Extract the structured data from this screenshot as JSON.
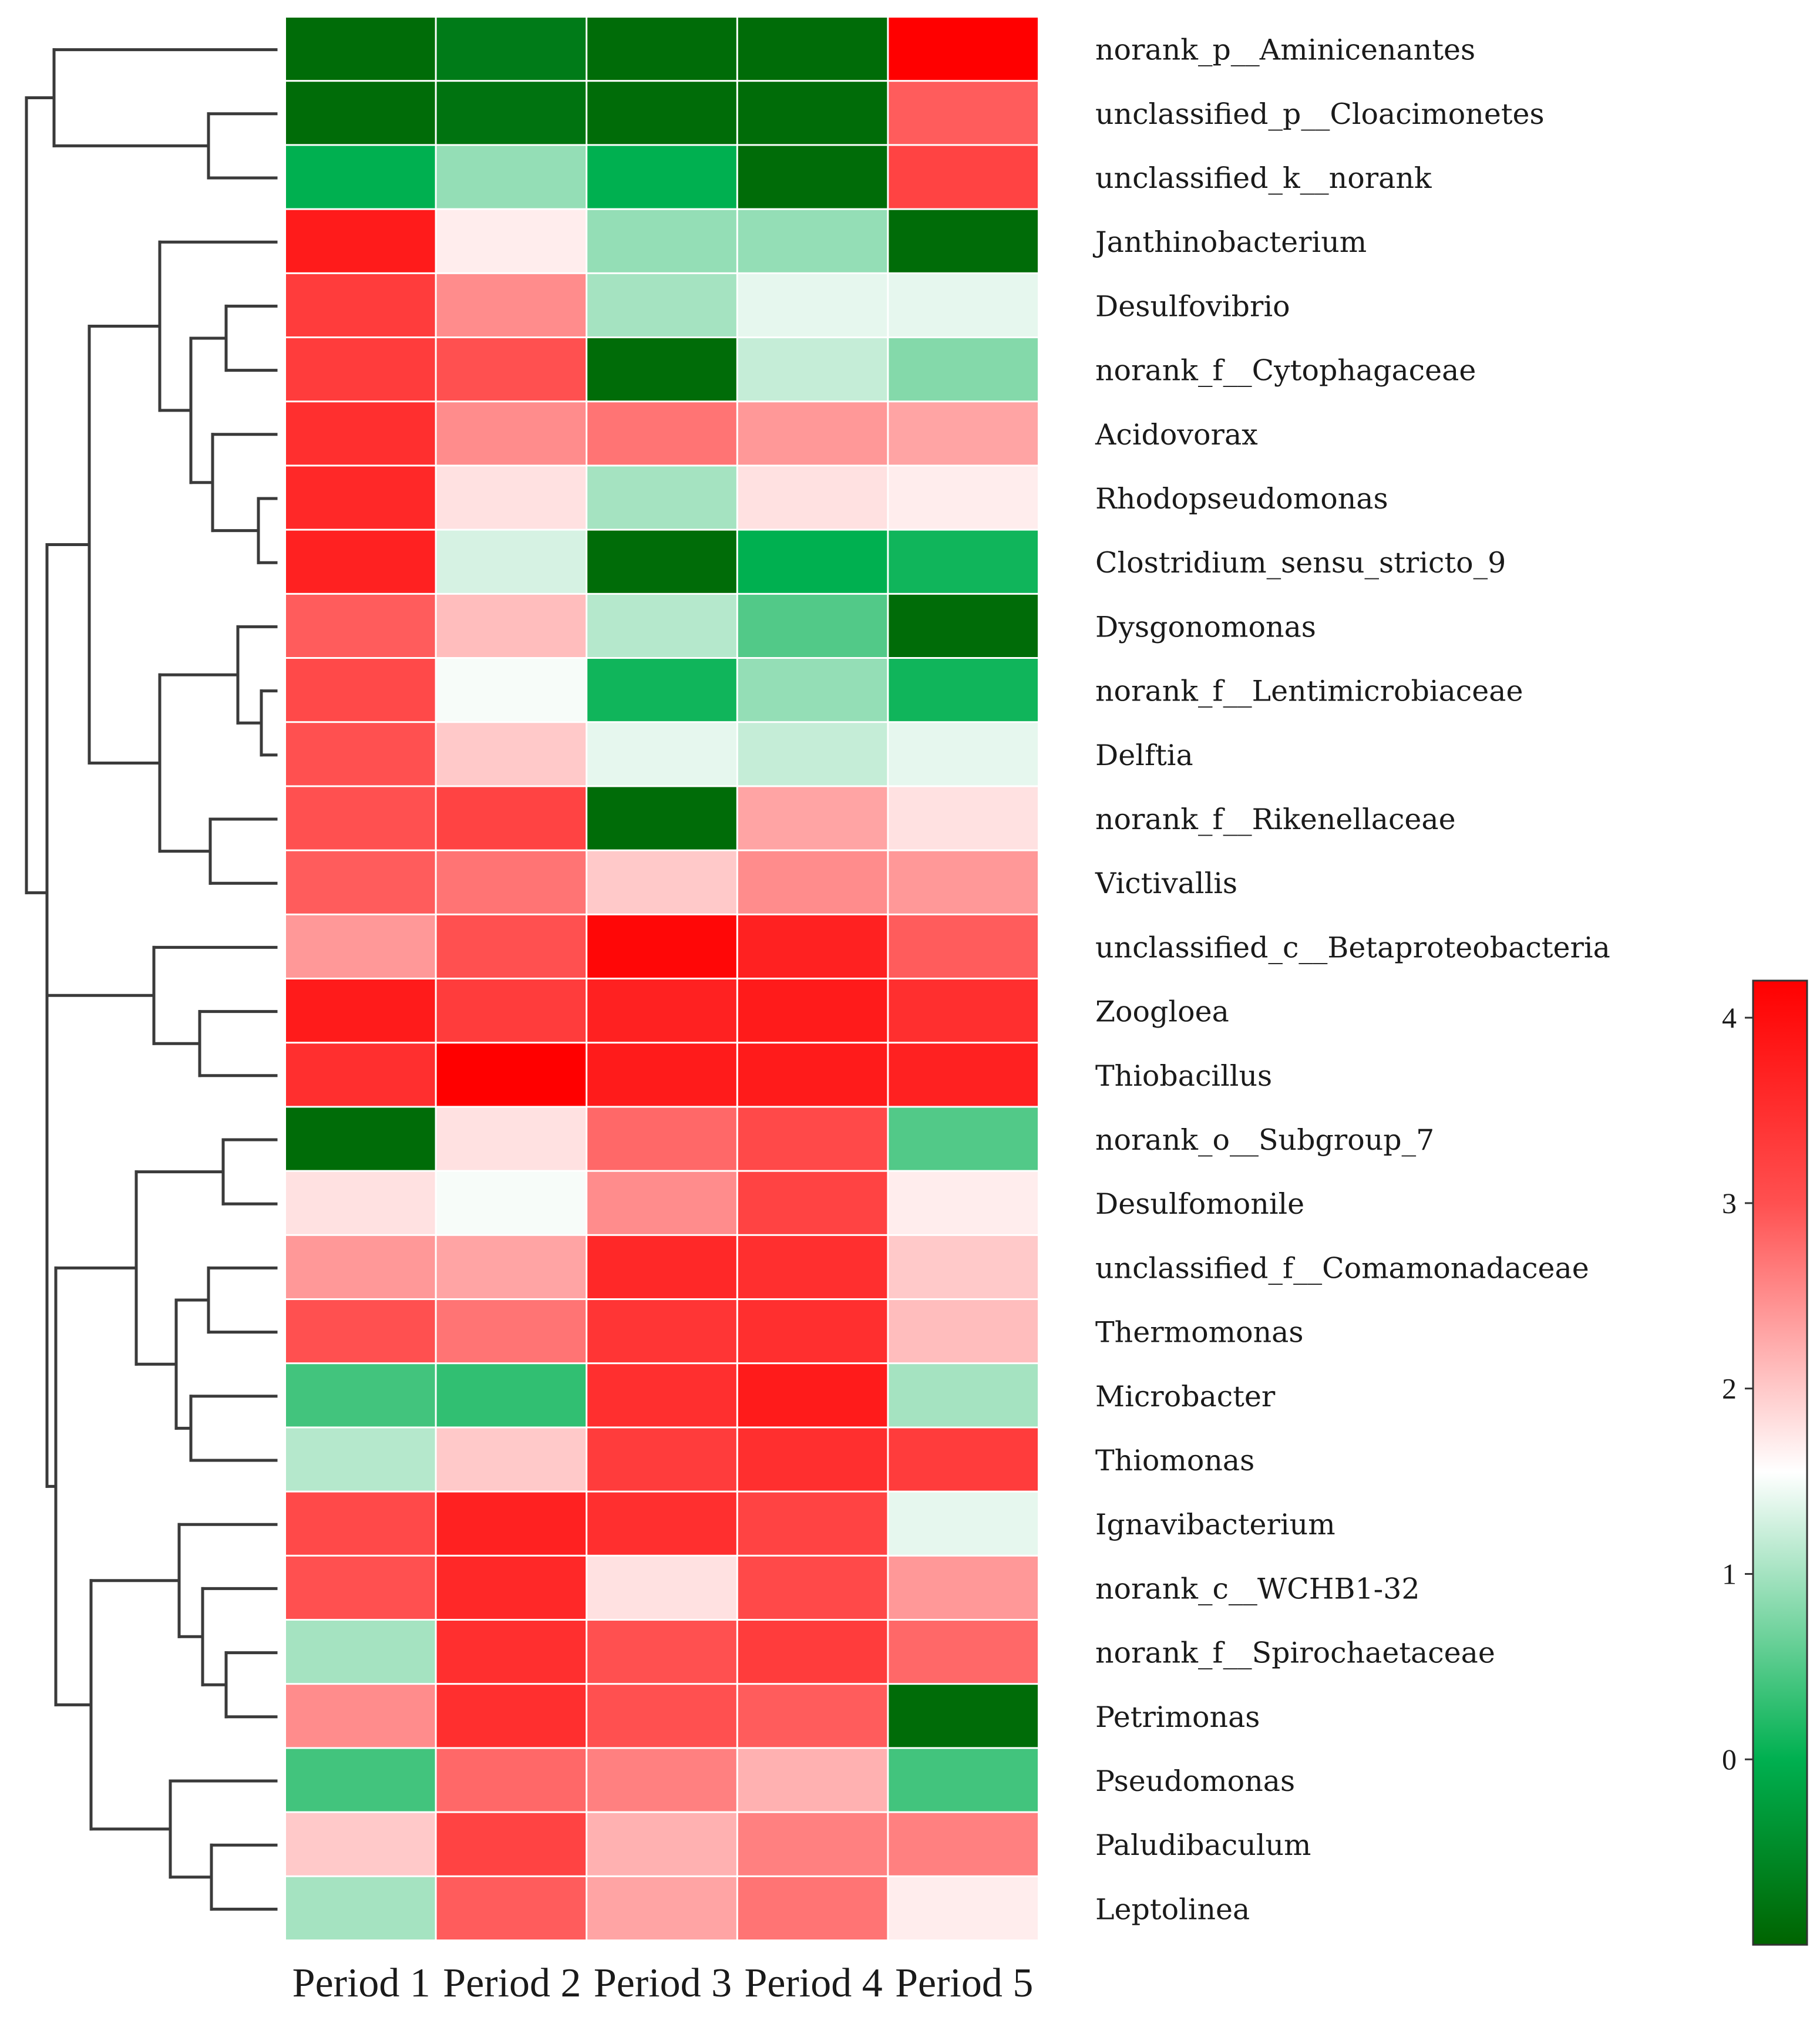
{
  "chart_data": {
    "type": "heatmap",
    "title": "",
    "rows": [
      "norank_p__Aminicenantes",
      "unclassified_p__Cloacimonetes",
      "unclassified_k__norank",
      "Janthinobacterium",
      "Desulfovibrio",
      "norank_f__Cytophagaceae",
      "Acidovorax",
      "Rhodopseudomonas",
      "Clostridium_sensu_stricto_9",
      "Dysgonomonas",
      "norank_f__Lentimicrobiaceae",
      "Delftia",
      "norank_f__Rikenellaceae",
      "Victivallis",
      "unclassified_c__Betaproteobacteria",
      "Zoogloea",
      "Thiobacillus",
      "norank_o__Subgroup_7",
      "Desulfomonile",
      "unclassified_f__Comamonadaceae",
      "Thermomonas",
      "Microbacter",
      "Thiomonas",
      "Ignavibacterium",
      "norank_c__WCHB1-32",
      "norank_f__Spirochaetaceae",
      "Petrimonas",
      "Pseudomonas",
      "Paludibaculum",
      "Leptolinea"
    ],
    "columns": [
      "Period 1",
      "Period 2",
      "Period 3",
      "Period 4",
      "Period 5"
    ],
    "values": [
      [
        -0.9,
        -0.7,
        -0.9,
        -0.9,
        4.2
      ],
      [
        -0.9,
        -0.8,
        -0.9,
        -0.9,
        2.9
      ],
      [
        0.0,
        0.9,
        0.0,
        -0.9,
        3.2
      ],
      [
        3.8,
        1.7,
        0.9,
        0.9,
        -0.9
      ],
      [
        3.3,
        2.5,
        1.0,
        1.4,
        1.4
      ],
      [
        3.3,
        3.0,
        -0.9,
        1.2,
        0.8
      ],
      [
        3.5,
        2.5,
        2.7,
        2.4,
        2.3
      ],
      [
        3.6,
        1.8,
        1.0,
        1.8,
        1.7
      ],
      [
        3.7,
        1.3,
        -0.9,
        0.0,
        0.1
      ],
      [
        2.9,
        2.1,
        1.1,
        0.5,
        -0.9
      ],
      [
        3.1,
        1.5,
        0.1,
        0.9,
        0.1
      ],
      [
        3.0,
        2.0,
        1.4,
        1.2,
        1.4
      ],
      [
        3.0,
        3.2,
        -0.9,
        2.3,
        1.8
      ],
      [
        2.9,
        2.7,
        2.0,
        2.5,
        2.4
      ],
      [
        2.4,
        3.0,
        4.1,
        3.7,
        2.9
      ],
      [
        3.8,
        3.3,
        3.7,
        3.8,
        3.5
      ],
      [
        3.5,
        4.2,
        3.8,
        3.8,
        3.7
      ],
      [
        -0.9,
        1.8,
        2.8,
        3.1,
        0.5
      ],
      [
        1.8,
        1.5,
        2.5,
        3.2,
        1.7
      ],
      [
        2.4,
        2.3,
        3.6,
        3.5,
        2.0
      ],
      [
        3.0,
        2.7,
        3.4,
        3.5,
        2.1
      ],
      [
        0.4,
        0.3,
        3.5,
        3.8,
        1.0
      ],
      [
        1.1,
        2.0,
        3.3,
        3.5,
        3.3
      ],
      [
        3.1,
        3.7,
        3.5,
        3.2,
        1.4
      ],
      [
        3.0,
        3.6,
        1.8,
        3.1,
        2.4
      ],
      [
        1.0,
        3.5,
        3.0,
        3.3,
        2.8
      ],
      [
        2.5,
        3.5,
        3.0,
        2.9,
        -0.9
      ],
      [
        0.4,
        2.8,
        2.6,
        2.2,
        0.4
      ],
      [
        2.0,
        3.2,
        2.2,
        2.6,
        2.6
      ],
      [
        1.0,
        2.9,
        2.3,
        2.7,
        1.7
      ]
    ],
    "colorbar": {
      "ticks": [
        0,
        1,
        2,
        3,
        4
      ],
      "tick_labels": [
        "0",
        "1",
        "2",
        "3",
        "4"
      ],
      "range": [
        -1.0,
        4.2
      ],
      "colors": {
        "low": "#006400",
        "mid_low": "#00b050",
        "mid": "#ffffff",
        "mid_high": "#ff5050",
        "high": "#ff0000"
      },
      "stops": [
        -1.0,
        0.0,
        1.55,
        3.0,
        4.2
      ]
    },
    "row_dendrogram": {
      "groups": "rows 0-2 (Aminicenantes, Cloacimonetes, k__norank) | rows 3-13 | rows 14-16 | rows 17-22 | rows 23-29"
    }
  }
}
